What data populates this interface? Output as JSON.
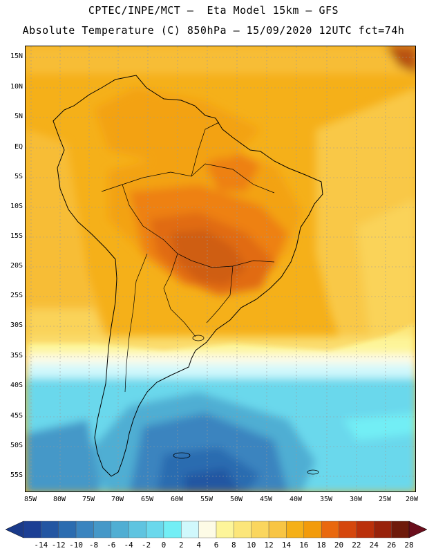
{
  "header": {
    "line1": "CPTEC/INPE/MCT –  Eta Model 15km – GFS",
    "line2": "Absolute Temperature (C) 850hPa – 15/09/2020 12UTC fct=74h"
  },
  "axes": {
    "lat_labels": [
      "15N",
      "10N",
      "5N",
      "EQ",
      "5S",
      "10S",
      "15S",
      "20S",
      "25S",
      "30S",
      "35S",
      "40S",
      "45S",
      "50S",
      "55S"
    ],
    "lon_labels": [
      "85W",
      "80W",
      "75W",
      "70W",
      "65W",
      "60W",
      "55W",
      "50W",
      "45W",
      "40W",
      "35W",
      "30W",
      "25W",
      "20W"
    ]
  },
  "colorbar": {
    "labels": [
      "-14",
      "-12",
      "-10",
      "-8",
      "-6",
      "-4",
      "-2",
      "0",
      "2",
      "4",
      "6",
      "8",
      "10",
      "12",
      "14",
      "16",
      "18",
      "20",
      "22",
      "24",
      "26",
      "28"
    ],
    "colors": [
      "#1c3f94",
      "#2356a2",
      "#2b6cb0",
      "#3a84bf",
      "#4598c8",
      "#50aed3",
      "#5fc4e0",
      "#6ad8ec",
      "#72eef5",
      "#d0f8fc",
      "#fdfbe6",
      "#fdf59a",
      "#fce67a",
      "#fad65e",
      "#f8c544",
      "#f5b018",
      "#f29b0b",
      "#e9680e",
      "#d5470d",
      "#ba300b",
      "#98220b",
      "#6e1a0a"
    ],
    "under_color": "#1a3a8a",
    "over_color": "#6a0e1c"
  }
}
